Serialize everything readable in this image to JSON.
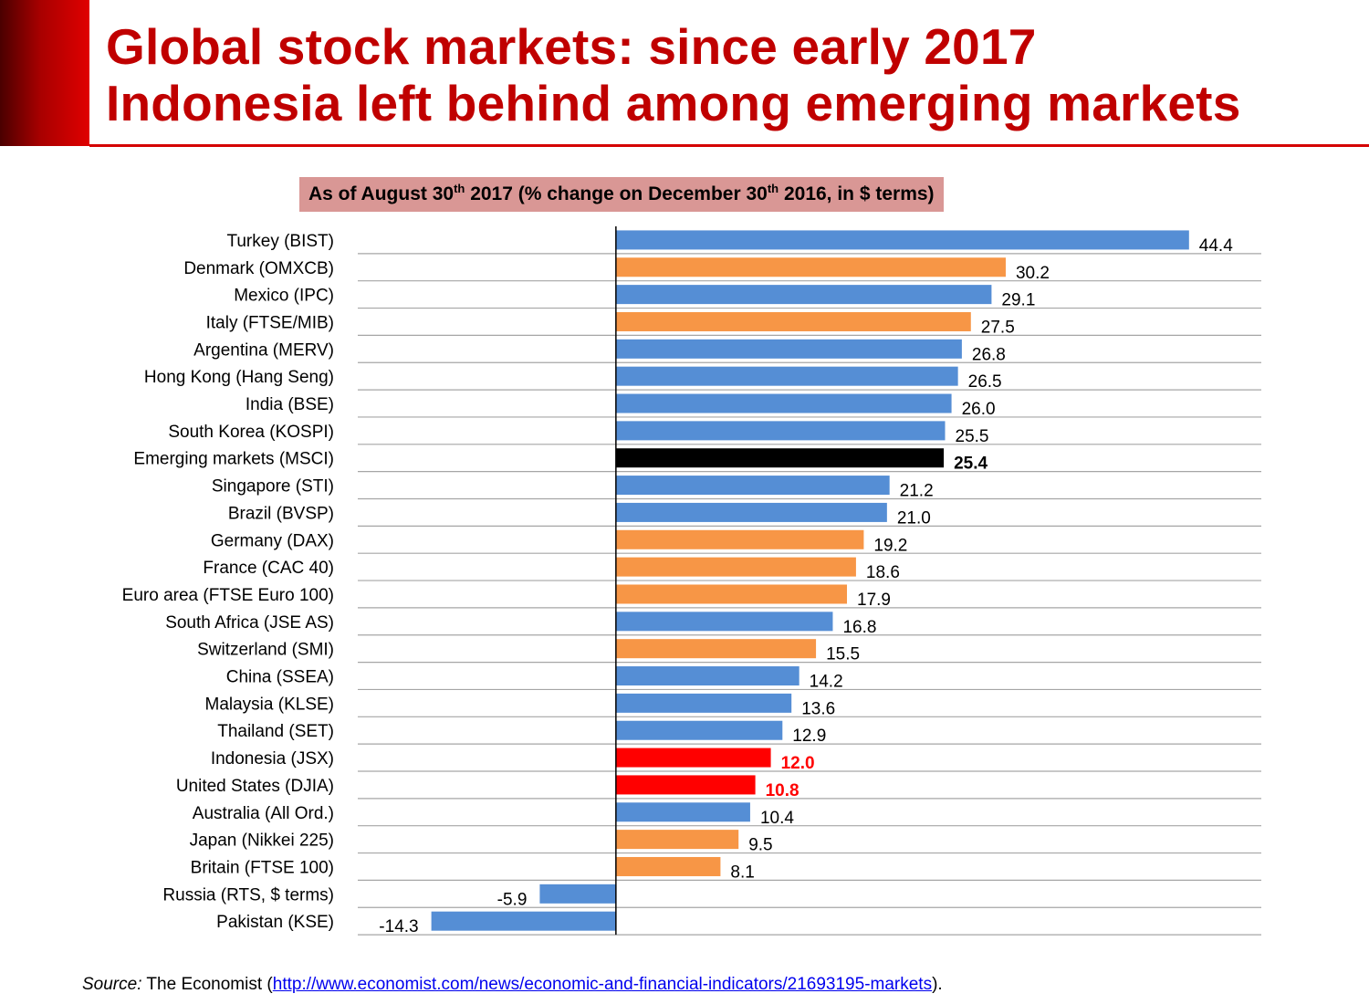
{
  "header": {
    "title_line1": "Global stock markets: since early 2017",
    "title_line2": "Indonesia left behind among emerging markets"
  },
  "subtitle": {
    "part1": "As of August 30",
    "sup1": "th",
    "part2": " 2017 (% change on December 30",
    "sup2": "th",
    "part3": " 2016, in $ terms)"
  },
  "source": {
    "label": "Source:",
    "text": " The Economist (",
    "link": "http://www.economist.com/news/economic-and-financial-indicators/21693195-markets",
    "suffix": ")."
  },
  "colors": {
    "title": "#c00000",
    "subtitle_bg": "#d99795",
    "emerging_bar": "#558ed5",
    "developed_bar": "#f79646",
    "benchmark_bar": "#000000",
    "highlight_bar": "#ff0000",
    "highlight_label": "#ff0000",
    "gridline": "#a6a6a6"
  },
  "chart_data": {
    "type": "bar",
    "orientation": "horizontal",
    "title": "As of August 30th 2017 (% change on December 30th 2016, in $ terms)",
    "xlabel": "",
    "ylabel": "",
    "xlim": [
      -20,
      50
    ],
    "grid": true,
    "categories": [
      "Turkey (BIST)",
      "Denmark (OMXCB)",
      "Mexico (IPC)",
      "Italy (FTSE/MIB)",
      "Argentina (MERV)",
      "Hong Kong (Hang Seng)",
      "India (BSE)",
      "South Korea (KOSPI)",
      "Emerging markets (MSCI)",
      "Singapore (STI)",
      "Brazil (BVSP)",
      "Germany (DAX)",
      "France (CAC 40)",
      "Euro area (FTSE Euro 100)",
      "South Africa (JSE AS)",
      "Switzerland (SMI)",
      "China (SSEA)",
      "Malaysia (KLSE)",
      "Thailand (SET)",
      "Indonesia (JSX)",
      "United States (DJIA)",
      "Australia (All Ord.)",
      "Japan (Nikkei 225)",
      "Britain (FTSE 100)",
      "Russia (RTS, $ terms)",
      "Pakistan (KSE)"
    ],
    "values": [
      44.4,
      30.2,
      29.1,
      27.5,
      26.8,
      26.5,
      26.0,
      25.5,
      25.4,
      21.2,
      21.0,
      19.2,
      18.6,
      17.9,
      16.8,
      15.5,
      14.2,
      13.6,
      12.9,
      12.0,
      10.8,
      10.4,
      9.5,
      8.1,
      -5.9,
      -14.3
    ],
    "labels": [
      "44.4",
      "30.2",
      "29.1",
      "27.5",
      "26.8",
      "26.5",
      "26.0",
      "25.5",
      "25.4",
      "21.2",
      "21.0",
      "19.2",
      "18.6",
      "17.9",
      "16.8",
      "15.5",
      "14.2",
      "13.6",
      "12.9",
      "12.0",
      "10.8",
      "10.4",
      "9.5",
      "8.1",
      "-5.9",
      "-14.3"
    ],
    "groups": [
      "emerging",
      "developed",
      "emerging",
      "developed",
      "emerging",
      "emerging",
      "emerging",
      "emerging",
      "benchmark",
      "emerging",
      "emerging",
      "developed",
      "developed",
      "developed",
      "emerging",
      "developed",
      "emerging",
      "emerging",
      "emerging",
      "highlight",
      "highlight",
      "emerging",
      "developed",
      "developed",
      "emerging",
      "emerging"
    ]
  }
}
